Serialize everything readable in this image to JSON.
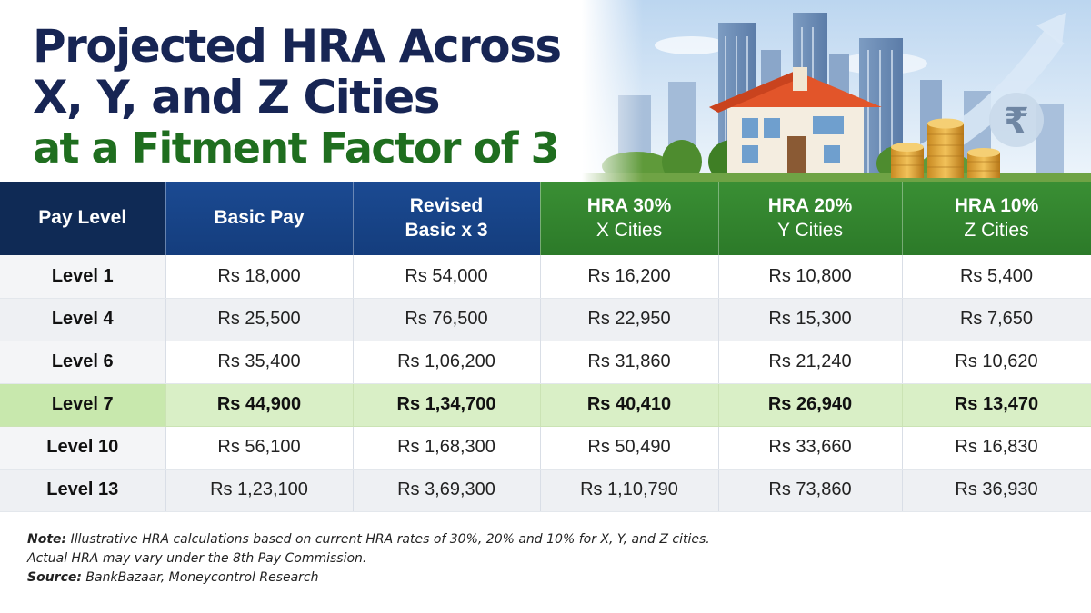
{
  "title": {
    "line1": "Projected HRA Across",
    "line2": "X, Y, and Z Cities",
    "line3": "at a Fitment Factor of 3"
  },
  "illustration": {
    "icon": "rupee-icon",
    "glyph": "₹"
  },
  "table": {
    "headers": [
      {
        "line1": "Pay Level",
        "line2": ""
      },
      {
        "line1": "Basic Pay",
        "line2": ""
      },
      {
        "line1": "Revised",
        "line2": "Basic x 3"
      },
      {
        "line1": "HRA 30%",
        "line2": "X Cities"
      },
      {
        "line1": "HRA 20%",
        "line2": "Y Cities"
      },
      {
        "line1": "HRA 10%",
        "line2": "Z Cities"
      }
    ],
    "rows": [
      {
        "level": "Level 1",
        "basic": "Rs 18,000",
        "revised": "Rs 54,000",
        "x": "Rs 16,200",
        "y": "Rs 10,800",
        "z": "Rs 5,400"
      },
      {
        "level": "Level 4",
        "basic": "Rs 25,500",
        "revised": "Rs 76,500",
        "x": "Rs 22,950",
        "y": "Rs 15,300",
        "z": "Rs 7,650"
      },
      {
        "level": "Level 6",
        "basic": "Rs 35,400",
        "revised": "Rs 1,06,200",
        "x": "Rs 31,860",
        "y": "Rs 21,240",
        "z": "Rs 10,620"
      },
      {
        "level": "Level 7",
        "basic": "Rs 44,900",
        "revised": "Rs 1,34,700",
        "x": "Rs 40,410",
        "y": "Rs 26,940",
        "z": "Rs 13,470"
      },
      {
        "level": "Level 10",
        "basic": "Rs 56,100",
        "revised": "Rs 1,68,300",
        "x": "Rs 50,490",
        "y": "Rs 33,660",
        "z": "Rs 16,830"
      },
      {
        "level": "Level 13",
        "basic": "Rs 1,23,100",
        "revised": "Rs 3,69,300",
        "x": "Rs 1,10,790",
        "y": "Rs 73,860",
        "z": "Rs 36,930"
      }
    ]
  },
  "notes": {
    "note_label": "Note:",
    "note_text": " Illustrative HRA calculations based on current HRA rates of 30%, 20% and 10% for X, Y, and Z cities.",
    "note_text2": "Actual HRA may vary under the 8th Pay Commission.",
    "source_label": "Source:",
    "source_text": " BankBazaar, Moneycontrol Research"
  },
  "colors": {
    "title_navy": "#172554",
    "title_green": "#1f6e1f",
    "header_navy": "#0f2a55",
    "header_blue": "#1b4a92",
    "header_green": "#3a8f34",
    "highlight_row": "#d9efc6"
  }
}
